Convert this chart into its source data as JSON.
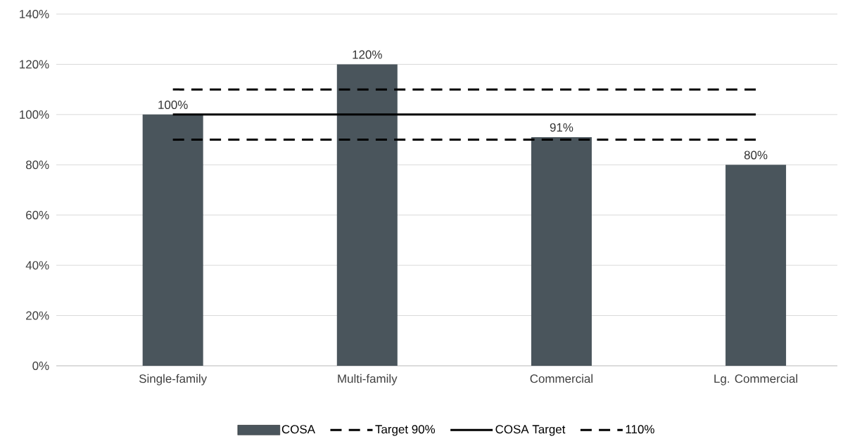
{
  "chart_data": {
    "type": "bar",
    "categories": [
      "Single-family",
      "Multi-family",
      "Commercial",
      "Lg. Commercial"
    ],
    "series": [
      {
        "name": "COSA",
        "color": "#4a555c",
        "values": [
          100,
          120,
          91,
          80
        ],
        "value_labels": [
          "100%",
          "120%",
          "91%",
          "80%"
        ]
      },
      {
        "name": "Target 90%",
        "type": "line",
        "color": "#000000",
        "line_style": "dashed",
        "values": [
          90,
          90,
          90,
          90
        ]
      },
      {
        "name": "COSA Target",
        "type": "line",
        "color": "#000000",
        "line_style": "solid",
        "values": [
          100,
          100,
          100,
          100
        ]
      },
      {
        "name": "110%",
        "type": "line",
        "color": "#000000",
        "line_style": "dashed",
        "values": [
          110,
          110,
          110,
          110
        ]
      }
    ],
    "ylim": [
      0,
      140
    ],
    "yticks": [
      {
        "value": 0,
        "label": "0%"
      },
      {
        "value": 20,
        "label": "20%"
      },
      {
        "value": 40,
        "label": "40%"
      },
      {
        "value": 60,
        "label": "60%"
      },
      {
        "value": 80,
        "label": "80%"
      },
      {
        "value": 100,
        "label": "100%"
      },
      {
        "value": 120,
        "label": "120%"
      },
      {
        "value": 140,
        "label": "140%"
      }
    ],
    "grid": "y",
    "legend": "bottom"
  }
}
